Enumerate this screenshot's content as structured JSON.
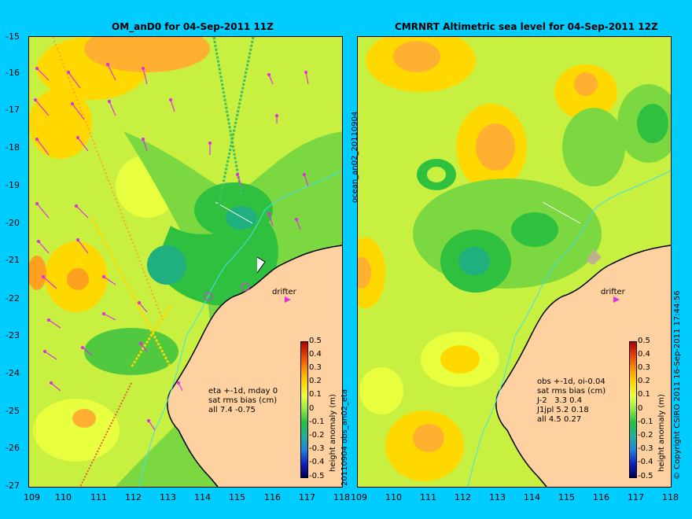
{
  "left_panel": {
    "title": "OM_anD0 for 04-Sep-2011 11Z",
    "side_label": "20110904 obs_an02_eta",
    "stats": "eta +-1d, mday 0\nsat rms bias (cm)\nall 7.4 -0.75",
    "drifter_label": "drifter"
  },
  "right_panel": {
    "title": "CMRNRT Altimetric sea level  for 04-Sep-2011 12Z",
    "side_label": "ocean_an02_20110904",
    "stats": "obs +-1d, oi-0.04\nsat rms bias (cm)\nJ-2   3.3 0.4\nJ1jpl 5.2 0.18\nall 4.5 0.27",
    "drifter_label": "drifter",
    "copyright": "© Copyright CSIRO 2011   16-Sep-2011 17:44:56"
  },
  "axes": {
    "x_ticks": [
      "109",
      "110",
      "111",
      "112",
      "113",
      "114",
      "115",
      "116",
      "117",
      "118"
    ],
    "y_ticks": [
      "-15",
      "-16",
      "-17",
      "-18",
      "-19",
      "-20",
      "-21",
      "-22",
      "-23",
      "-24",
      "-25",
      "-26",
      "-27"
    ]
  },
  "colorbar": {
    "label": "height anomaly (m)",
    "ticks": [
      "0.5",
      "0.4",
      "0.3",
      "0.2",
      "0.1",
      "0",
      "-0.1",
      "-0.2",
      "-0.3",
      "-0.4",
      "-0.5"
    ]
  },
  "colors": {
    "background": "#00ccff",
    "ocean_base": "#c8f040",
    "land": "#ffd0a0",
    "coastline": "#000000",
    "isobath": "#40e0f0",
    "vectors": "#e030e0"
  }
}
